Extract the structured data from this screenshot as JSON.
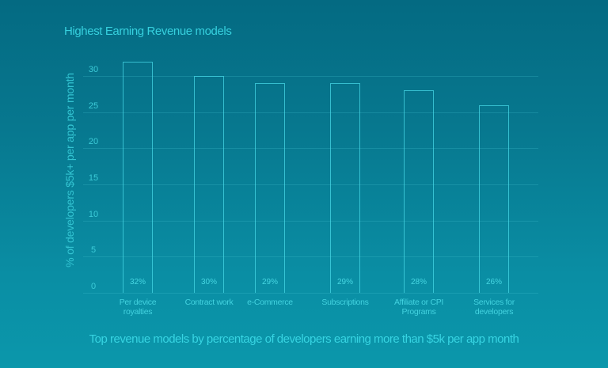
{
  "chart_data": {
    "type": "bar",
    "title": "Highest Earning Revenue models",
    "subtitle": "Top revenue models by percentage of developers earning more than $5k per app month",
    "xlabel": "",
    "ylabel": "% of developers $5k+ per app per month",
    "categories": [
      "Per device royalties",
      "Contract work",
      "e-Commerce",
      "Subscriptions",
      "Affiliate or CPI Programs",
      "Services for developers"
    ],
    "category_lines": [
      [
        "Per device",
        "royalties"
      ],
      [
        "Contract work"
      ],
      [
        "e-Commerce"
      ],
      [
        "Subscriptions"
      ],
      [
        "Affiliate or CPI",
        "Programs"
      ],
      [
        "Services for",
        "developers"
      ]
    ],
    "values": [
      32,
      30,
      29,
      29,
      28,
      26
    ],
    "value_labels": [
      "32%",
      "30%",
      "29%",
      "29%",
      "28%",
      "26%"
    ],
    "ylim": [
      0,
      32
    ],
    "yticks": [
      "0",
      "5",
      "10",
      "15",
      "20",
      "25",
      "30"
    ],
    "grid": true,
    "legend": "none",
    "colors": {
      "bar_outline": "#46d7e6",
      "text": "#36d0de",
      "background_top": "#046a82",
      "background_bottom": "#0b97ab"
    }
  }
}
